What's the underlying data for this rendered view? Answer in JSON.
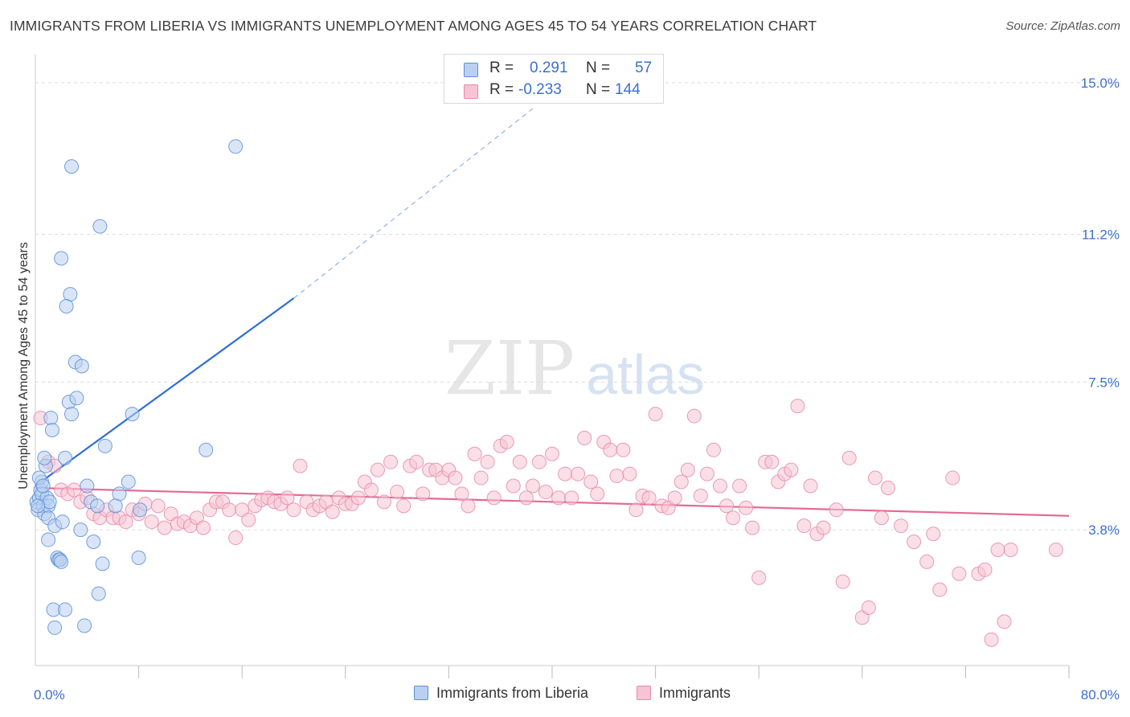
{
  "header": {
    "title": "IMMIGRANTS FROM LIBERIA VS IMMIGRANTS UNEMPLOYMENT AMONG AGES 45 TO 54 YEARS CORRELATION CHART",
    "source": "Source: ZipAtlas.com"
  },
  "colors": {
    "blue": "#5b8fd8",
    "blue_fill": "#b9d0f0",
    "blue_line": "#2e6fd6",
    "pink": "#e88aaa",
    "pink_fill": "#f6c4d4",
    "pink_line": "#e46b95",
    "axis_label": "#3b6fd0",
    "grid": "#dddddd"
  },
  "correlation_box": {
    "rows": [
      {
        "r_label": "R =",
        "r_value": "0.291",
        "n_label": "N =",
        "n_value": "57"
      },
      {
        "r_label": "R =",
        "r_value": "-0.233",
        "n_label": "N =",
        "n_value": "144"
      }
    ]
  },
  "legend": {
    "items": [
      {
        "label": "Immigrants from Liberia"
      },
      {
        "label": "Immigrants"
      }
    ]
  },
  "watermark": {
    "zip": "ZIP",
    "atlas": "atlas"
  },
  "chart_data": {
    "type": "scatter",
    "title": "IMMIGRANTS FROM LIBERIA VS IMMIGRANTS UNEMPLOYMENT AMONG AGES 45 TO 54 YEARS CORRELATION CHART",
    "xlabel": "",
    "ylabel": "Unemployment Among Ages 45 to 54 years",
    "xlim": [
      0,
      80
    ],
    "ylim": [
      0.4,
      15.5
    ],
    "x_tick_labels": {
      "min": "0.0%",
      "max": "80.0%"
    },
    "y_ticks": [
      {
        "value": 3.8,
        "label": "3.8%"
      },
      {
        "value": 7.5,
        "label": "7.5%"
      },
      {
        "value": 11.2,
        "label": "11.2%"
      },
      {
        "value": 15.0,
        "label": "15.0%"
      }
    ],
    "series": [
      {
        "name": "Immigrants from Liberia",
        "color": "#5b8fd8",
        "r": 0.291,
        "n": 57,
        "trend": {
          "x0": 0.0,
          "y0": 4.9,
          "x1": 20.0,
          "y1": 9.6,
          "dash_to_x": 38.5,
          "dash_to_y": 14.35
        },
        "points": [
          [
            0.1,
            4.5
          ],
          [
            0.2,
            4.3
          ],
          [
            0.3,
            4.6
          ],
          [
            0.4,
            4.8
          ],
          [
            0.5,
            5.0
          ],
          [
            0.6,
            4.4
          ],
          [
            0.7,
            4.2
          ],
          [
            0.8,
            5.4
          ],
          [
            0.3,
            5.1
          ],
          [
            0.5,
            4.7
          ],
          [
            0.9,
            4.6
          ],
          [
            1.0,
            4.4
          ],
          [
            1.1,
            4.5
          ],
          [
            0.7,
            5.6
          ],
          [
            0.6,
            4.9
          ],
          [
            0.2,
            4.4
          ],
          [
            1.2,
            6.6
          ],
          [
            1.3,
            6.3
          ],
          [
            1.0,
            4.1
          ],
          [
            1.5,
            3.9
          ],
          [
            1.7,
            3.1
          ],
          [
            1.8,
            3.05
          ],
          [
            1.9,
            3.05
          ],
          [
            2.1,
            4.0
          ],
          [
            2.3,
            5.6
          ],
          [
            2.6,
            7.0
          ],
          [
            2.8,
            6.7
          ],
          [
            3.2,
            7.1
          ],
          [
            3.1,
            8.0
          ],
          [
            3.6,
            7.9
          ],
          [
            2.7,
            9.7
          ],
          [
            2.4,
            9.4
          ],
          [
            2.0,
            10.6
          ],
          [
            2.8,
            12.9
          ],
          [
            5.0,
            11.4
          ],
          [
            3.5,
            3.8
          ],
          [
            4.5,
            3.5
          ],
          [
            5.2,
            2.95
          ],
          [
            4.9,
            2.2
          ],
          [
            4.3,
            4.5
          ],
          [
            4.8,
            4.4
          ],
          [
            5.4,
            5.9
          ],
          [
            7.2,
            5.0
          ],
          [
            6.5,
            4.7
          ],
          [
            7.5,
            6.7
          ],
          [
            8.0,
            3.1
          ],
          [
            8.1,
            4.3
          ],
          [
            6.2,
            4.4
          ],
          [
            1.4,
            1.8
          ],
          [
            1.5,
            1.35
          ],
          [
            2.3,
            1.8
          ],
          [
            3.8,
            1.4
          ],
          [
            13.2,
            5.8
          ],
          [
            15.5,
            13.4
          ],
          [
            1.0,
            3.55
          ],
          [
            2.0,
            3.0
          ],
          [
            4.0,
            4.9
          ]
        ]
      },
      {
        "name": "Immigrants",
        "color": "#e88aaa",
        "r": -0.233,
        "n": 144,
        "trend": {
          "x0": 0.0,
          "y0": 4.85,
          "x1": 80.0,
          "y1": 4.15
        },
        "points": [
          [
            0.4,
            6.6
          ],
          [
            1.0,
            5.5
          ],
          [
            1.5,
            5.4
          ],
          [
            2.0,
            4.8
          ],
          [
            2.5,
            4.7
          ],
          [
            3.0,
            4.8
          ],
          [
            3.5,
            4.5
          ],
          [
            4.0,
            4.6
          ],
          [
            4.5,
            4.2
          ],
          [
            5.0,
            4.1
          ],
          [
            5.5,
            4.3
          ],
          [
            6.0,
            4.1
          ],
          [
            6.5,
            4.1
          ],
          [
            7.0,
            4.0
          ],
          [
            7.5,
            4.3
          ],
          [
            8.0,
            4.2
          ],
          [
            8.5,
            4.45
          ],
          [
            9.0,
            4.0
          ],
          [
            9.5,
            4.4
          ],
          [
            10.0,
            3.85
          ],
          [
            10.5,
            4.2
          ],
          [
            11.0,
            3.95
          ],
          [
            11.5,
            4.0
          ],
          [
            12.0,
            3.9
          ],
          [
            12.5,
            4.1
          ],
          [
            13.0,
            3.85
          ],
          [
            13.5,
            4.3
          ],
          [
            14.0,
            4.5
          ],
          [
            14.5,
            4.5
          ],
          [
            15.0,
            4.3
          ],
          [
            15.5,
            3.6
          ],
          [
            16.0,
            4.3
          ],
          [
            16.5,
            4.05
          ],
          [
            17.0,
            4.4
          ],
          [
            17.5,
            4.55
          ],
          [
            18.0,
            4.6
          ],
          [
            18.5,
            4.5
          ],
          [
            19.0,
            4.45
          ],
          [
            19.5,
            4.6
          ],
          [
            20.0,
            4.3
          ],
          [
            20.5,
            5.4
          ],
          [
            21.0,
            4.5
          ],
          [
            21.5,
            4.3
          ],
          [
            22.0,
            4.4
          ],
          [
            22.5,
            4.5
          ],
          [
            23.0,
            4.25
          ],
          [
            23.5,
            4.6
          ],
          [
            24.0,
            4.45
          ],
          [
            24.5,
            4.45
          ],
          [
            25.0,
            4.6
          ],
          [
            25.5,
            5.0
          ],
          [
            26.0,
            4.8
          ],
          [
            26.5,
            5.3
          ],
          [
            27.0,
            4.5
          ],
          [
            27.5,
            5.5
          ],
          [
            28.0,
            4.75
          ],
          [
            28.5,
            4.4
          ],
          [
            29.0,
            5.4
          ],
          [
            29.5,
            5.5
          ],
          [
            30.0,
            4.7
          ],
          [
            30.5,
            5.3
          ],
          [
            31.0,
            5.3
          ],
          [
            31.5,
            5.1
          ],
          [
            32.0,
            5.3
          ],
          [
            32.5,
            5.1
          ],
          [
            33.0,
            4.7
          ],
          [
            33.5,
            4.4
          ],
          [
            34.0,
            5.7
          ],
          [
            34.5,
            5.1
          ],
          [
            35.0,
            5.5
          ],
          [
            35.5,
            4.6
          ],
          [
            36.0,
            5.9
          ],
          [
            36.5,
            6.0
          ],
          [
            37.0,
            4.9
          ],
          [
            37.5,
            5.5
          ],
          [
            38.0,
            4.6
          ],
          [
            38.5,
            4.9
          ],
          [
            39.0,
            5.5
          ],
          [
            39.5,
            4.75
          ],
          [
            40.0,
            5.7
          ],
          [
            40.5,
            4.6
          ],
          [
            41.0,
            5.2
          ],
          [
            41.5,
            4.6
          ],
          [
            42.0,
            5.2
          ],
          [
            42.5,
            6.1
          ],
          [
            43.0,
            5.0
          ],
          [
            43.5,
            4.7
          ],
          [
            44.0,
            6.0
          ],
          [
            44.5,
            5.8
          ],
          [
            45.0,
            5.15
          ],
          [
            45.5,
            5.8
          ],
          [
            46.0,
            5.2
          ],
          [
            46.5,
            4.3
          ],
          [
            47.0,
            4.65
          ],
          [
            47.5,
            4.6
          ],
          [
            48.0,
            6.7
          ],
          [
            48.5,
            4.4
          ],
          [
            49.0,
            4.35
          ],
          [
            49.5,
            4.6
          ],
          [
            50.0,
            5.0
          ],
          [
            50.5,
            5.3
          ],
          [
            51.0,
            6.65
          ],
          [
            51.5,
            4.65
          ],
          [
            52.0,
            5.2
          ],
          [
            52.5,
            5.8
          ],
          [
            53.0,
            4.9
          ],
          [
            53.5,
            4.4
          ],
          [
            54.0,
            4.1
          ],
          [
            54.5,
            4.9
          ],
          [
            55.0,
            4.35
          ],
          [
            55.5,
            3.85
          ],
          [
            56.0,
            2.6
          ],
          [
            56.5,
            5.5
          ],
          [
            57.0,
            5.5
          ],
          [
            57.5,
            5.0
          ],
          [
            58.0,
            5.2
          ],
          [
            58.5,
            5.3
          ],
          [
            59.0,
            6.9
          ],
          [
            59.5,
            3.9
          ],
          [
            60.0,
            4.9
          ],
          [
            60.5,
            3.7
          ],
          [
            61.0,
            3.85
          ],
          [
            62.0,
            4.3
          ],
          [
            62.5,
            2.5
          ],
          [
            63.0,
            5.6
          ],
          [
            64.0,
            1.6
          ],
          [
            64.5,
            1.85
          ],
          [
            65.0,
            5.1
          ],
          [
            65.5,
            4.1
          ],
          [
            66.0,
            4.85
          ],
          [
            67.0,
            3.9
          ],
          [
            68.0,
            3.5
          ],
          [
            69.0,
            3.0
          ],
          [
            69.5,
            3.7
          ],
          [
            70.0,
            2.3
          ],
          [
            71.0,
            5.1
          ],
          [
            71.5,
            2.7
          ],
          [
            73.0,
            2.7
          ],
          [
            73.5,
            2.8
          ],
          [
            74.0,
            1.05
          ],
          [
            74.5,
            3.3
          ],
          [
            75.0,
            1.5
          ],
          [
            75.5,
            3.3
          ],
          [
            79.0,
            3.3
          ]
        ]
      }
    ]
  }
}
